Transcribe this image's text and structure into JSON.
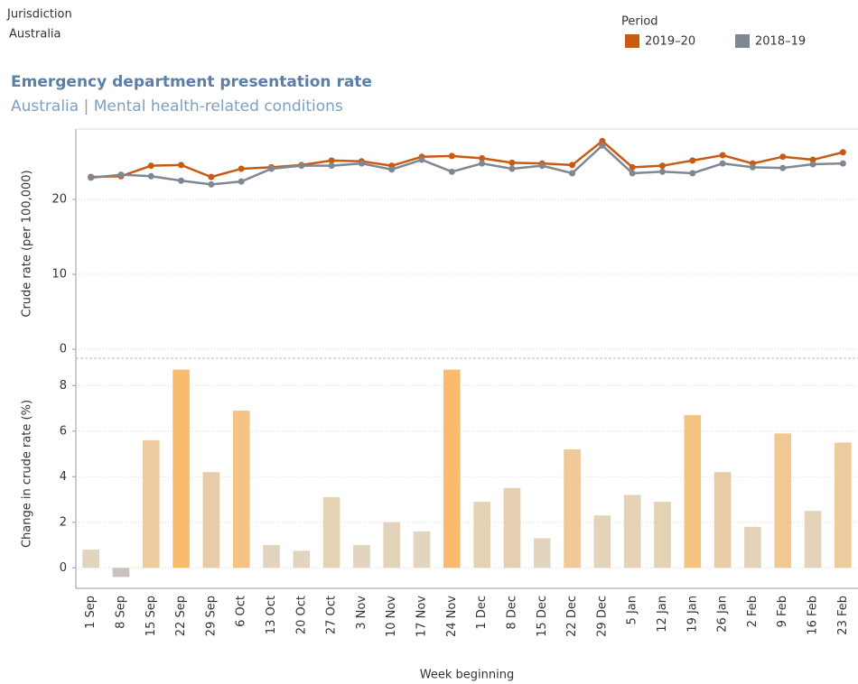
{
  "header": {
    "filter_label": "Jurisdiction",
    "filter_value": "Australia"
  },
  "chart_data": [
    {
      "type": "line",
      "title": "Emergency department presentation rate",
      "subtitle": "Australia | Mental health-related conditions",
      "y_label": "Crude rate (per 100,000)",
      "legend_title": "Period",
      "series": [
        {
          "name": "2019–20",
          "color": "#c85a12",
          "values": [
            23.0,
            23.1,
            24.5,
            24.6,
            23.0,
            24.1,
            24.3,
            24.6,
            25.2,
            25.1,
            24.5,
            25.7,
            25.8,
            25.5,
            24.9,
            24.8,
            24.6,
            27.8,
            24.3,
            24.5,
            25.2,
            25.9,
            24.8,
            25.7,
            25.3,
            26.3
          ]
        },
        {
          "name": "2018–19",
          "color": "#7f8793",
          "values": [
            22.9,
            23.3,
            23.1,
            22.5,
            22.0,
            22.4,
            24.1,
            24.5,
            24.5,
            24.8,
            24.0,
            25.3,
            23.7,
            24.8,
            24.1,
            24.5,
            23.5,
            27.2,
            23.5,
            23.7,
            23.5,
            24.8,
            24.3,
            24.2,
            24.7,
            24.8
          ]
        }
      ],
      "ylim": [
        -1.2,
        29.4
      ],
      "yticks": [
        0,
        10,
        20
      ],
      "grid": true
    },
    {
      "type": "bar",
      "x_label": "Week beginning",
      "y_label": "Change in crude rate (%)",
      "categories": [
        "1 Sep",
        "8 Sep",
        "15 Sep",
        "22 Sep",
        "29 Sep",
        "6 Oct",
        "13 Oct",
        "20 Oct",
        "27 Oct",
        "3 Nov",
        "10 Nov",
        "17 Nov",
        "24 Nov",
        "1 Dec",
        "8 Dec",
        "15 Dec",
        "22 Dec",
        "29 Dec",
        "5 Jan",
        "12 Jan",
        "19 Jan",
        "26 Jan",
        "2 Feb",
        "9 Feb",
        "16 Feb",
        "23 Feb"
      ],
      "values": [
        0.8,
        -0.4,
        5.6,
        8.7,
        4.2,
        6.9,
        1.0,
        0.75,
        3.1,
        1.0,
        2.0,
        1.6,
        8.7,
        2.9,
        3.5,
        1.3,
        5.2,
        2.3,
        3.2,
        2.9,
        6.7,
        4.2,
        1.8,
        5.9,
        2.5,
        5.5
      ],
      "colors": [
        "#e2d4be",
        "#c9c3c0",
        "#eecb9e",
        "#fbbb6e",
        "#e8cca8",
        "#f5c384",
        "#e2d4be",
        "#e2d4be",
        "#e5d1b3",
        "#e2d4be",
        "#e3d3b9",
        "#e2d4be",
        "#fbbb6e",
        "#e4d2b6",
        "#e6cfb0",
        "#e2d4be",
        "#efc999",
        "#e3d3b9",
        "#e5d1b3",
        "#e4d2b6",
        "#f6c282",
        "#e8cca8",
        "#e3d3b9",
        "#f1c892",
        "#e3d3b9",
        "#eecb9d"
      ],
      "ylim": [
        -0.9,
        9.2
      ],
      "yticks": [
        0,
        2,
        4,
        6,
        8
      ],
      "grid": true
    }
  ]
}
